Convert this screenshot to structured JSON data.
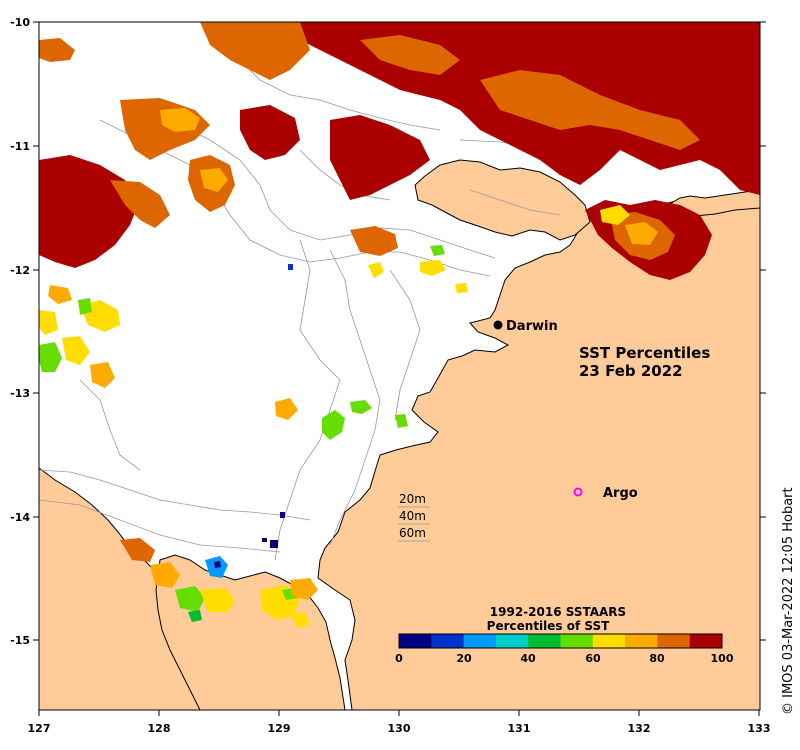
{
  "map": {
    "title_line1": "SST Percentiles",
    "title_line2": "23 Feb 2022",
    "land_color": "#ffcc99",
    "sea_color": "#ffffff",
    "extent": {
      "lon": [
        127,
        133
      ],
      "lat": [
        -15.5,
        -10
      ]
    },
    "lon_ticks": [
      "127",
      "128",
      "129",
      "130",
      "131",
      "132",
      "133"
    ],
    "lat_ticks": [
      "-10",
      "-11",
      "-12",
      "-13",
      "-14",
      "-15"
    ]
  },
  "places": {
    "darwin": {
      "label": "Darwin",
      "lon": 130.84,
      "lat": -12.46
    },
    "argo": {
      "label": "Argo",
      "lon": 131.5,
      "lat": -13.8,
      "marker_color": "#ff00ff"
    }
  },
  "depth_legend": [
    "20m",
    "40m",
    "60m"
  ],
  "colorbar": {
    "title_line1": "1992-2016 SSTAARS",
    "title_line2": "Percentiles of SST",
    "ticks": [
      "0",
      "20",
      "40",
      "60",
      "80",
      "100"
    ],
    "colors": [
      "#000080",
      "#0033cc",
      "#0099ff",
      "#00cccc",
      "#00bb33",
      "#66dd00",
      "#ffdd00",
      "#ffaa00",
      "#dd6600",
      "#aa0000"
    ]
  },
  "credit": "© IMOS 03-Mar-2022 12:05 Hobart"
}
